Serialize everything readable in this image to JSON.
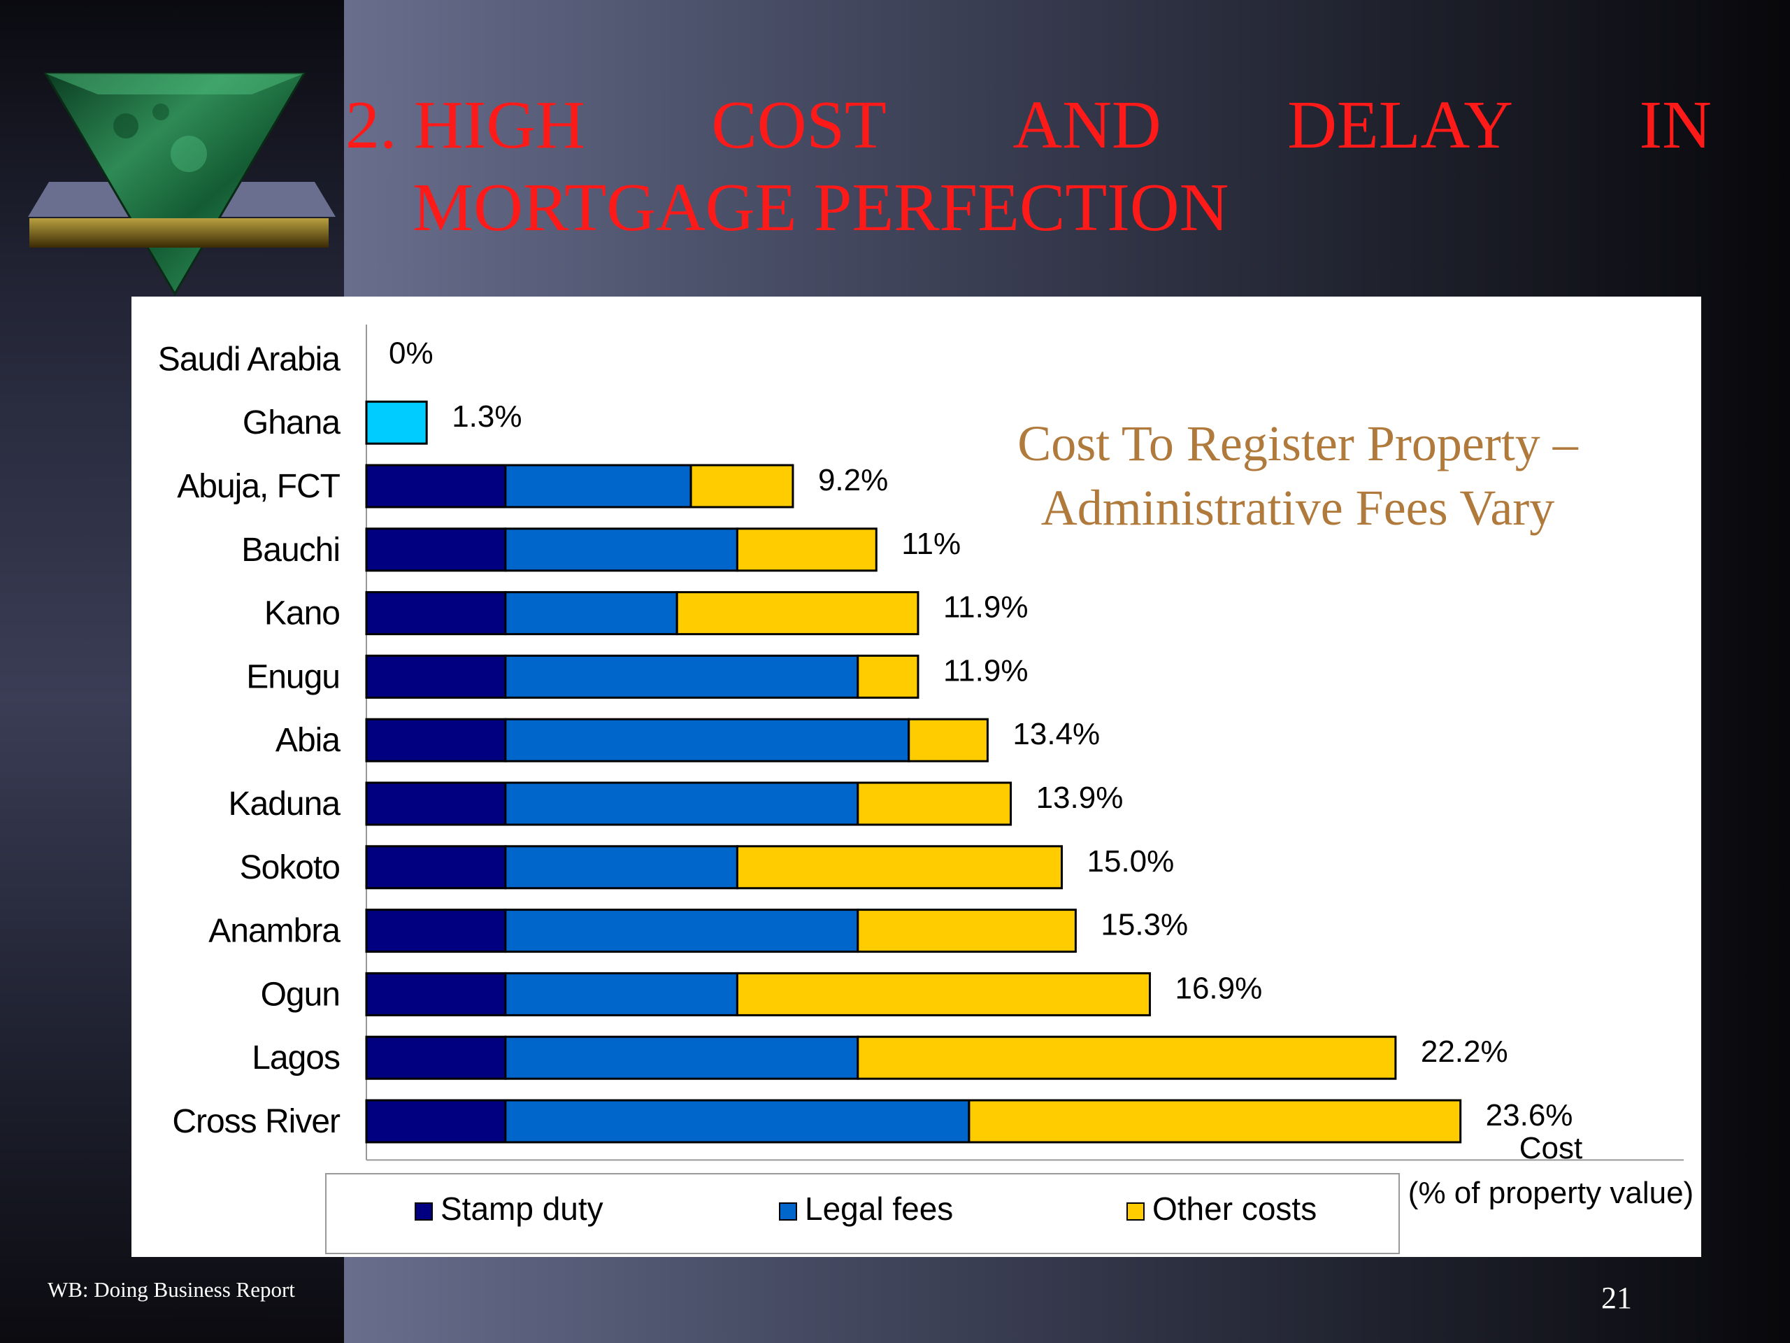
{
  "slide": {
    "title_line1": [
      "2. HIGH",
      "COST",
      "AND",
      "DELAY",
      "IN"
    ],
    "title_line2": "MORTGAGE PERFECTION",
    "source": "WB: Doing Business Report",
    "page_number": "21",
    "title_color": "#ff1a1a",
    "logo_icon": "green-marble-inverted-triangle-icon"
  },
  "chart_data": {
    "type": "bar",
    "orientation": "horizontal",
    "stacked": true,
    "note": [
      "Cost To Register Property –",
      "Administrative Fees Vary"
    ],
    "xlabel": [
      "Cost",
      "(% of property value)"
    ],
    "ylabel": "",
    "xlim": [
      0,
      25
    ],
    "grid": false,
    "legend_position": "bottom",
    "categories": [
      "Saudi Arabia",
      "Ghana",
      "Abuja, FCT",
      "Bauchi",
      "Kano",
      "Enugu",
      "Abia",
      "Kaduna",
      "Sokoto",
      "Anambra",
      "Ogun",
      "Lagos",
      "Cross River"
    ],
    "totals_labels": [
      "0%",
      "1.3%",
      "9.2%",
      "11%",
      "11.9%",
      "11.9%",
      "13.4%",
      "13.9%",
      "15.0%",
      "15.3%",
      "16.9%",
      "22.2%",
      "23.6%"
    ],
    "series": [
      {
        "name": "Stamp duty",
        "color": "#000080",
        "values": [
          0,
          0,
          3.0,
          3.0,
          3.0,
          3.0,
          3.0,
          3.0,
          3.0,
          3.0,
          3.0,
          3.0,
          3.0
        ]
      },
      {
        "name": "Legal fees",
        "color": "#0066cc",
        "values": [
          0,
          0,
          4.0,
          5.0,
          3.7,
          7.6,
          8.7,
          7.6,
          5.0,
          7.6,
          5.0,
          7.6,
          10.0
        ]
      },
      {
        "name": "Other costs",
        "color": "#ffcc00",
        "values": [
          0,
          0,
          2.2,
          3.0,
          5.2,
          1.3,
          1.7,
          3.3,
          7.0,
          4.7,
          8.9,
          11.6,
          10.6
        ]
      }
    ],
    "extra_bars": [
      {
        "category": "Ghana",
        "value": 1.3,
        "color": "#00ccff"
      }
    ]
  }
}
